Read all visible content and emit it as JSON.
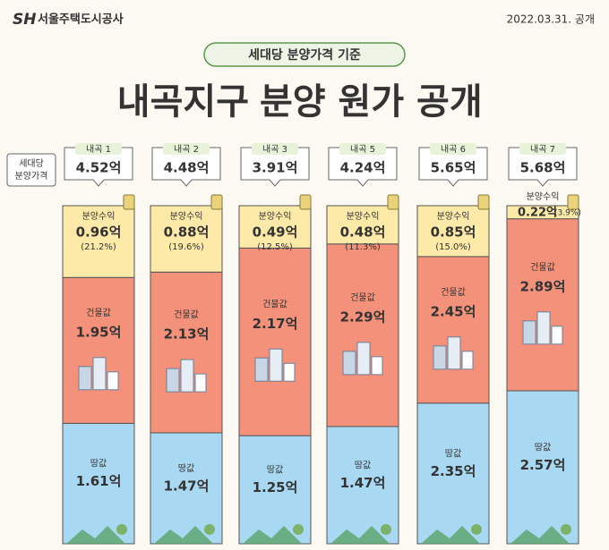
{
  "chart_data": {
    "type": "stacked_bar_100",
    "logo": "서울주택도시공사",
    "date": "2022.03.31. 공개",
    "subtitle": "세대당 분양가격 기준",
    "title_highlight": "내곡지구",
    "title_rest": "분양 원가 공개",
    "row_label": [
      "세대당",
      "분양가격"
    ],
    "categories": [
      "내곡 1",
      "내곡 2",
      "내곡 3",
      "내곡 5",
      "내곡 6",
      "내곡 7"
    ],
    "total_labels": [
      "4.52억",
      "4.48억",
      "3.91억",
      "4.24억",
      "5.65억",
      "5.68억"
    ],
    "series": [
      {
        "name": "땅값",
        "color": "#a9d9f2",
        "values": [
          1.61,
          1.47,
          1.25,
          1.47,
          2.35,
          2.57
        ],
        "value_labels": [
          "1.61억",
          "1.47억",
          "1.25억",
          "1.47억",
          "2.35억",
          "2.57억"
        ]
      },
      {
        "name": "건물값",
        "color": "#f4917a",
        "values": [
          1.95,
          2.13,
          2.17,
          2.29,
          2.45,
          2.89
        ],
        "value_labels": [
          "1.95억",
          "2.13억",
          "2.17억",
          "2.29억",
          "2.45억",
          "2.89억"
        ]
      },
      {
        "name": "분양수익",
        "color": "#fde9a8",
        "values": [
          0.96,
          0.88,
          0.49,
          0.48,
          0.85,
          0.22
        ],
        "value_labels": [
          "0.96억",
          "0.88억",
          "0.49억",
          "0.48억",
          "0.85억",
          "0.22억"
        ],
        "share_labels": [
          "(21.2%)",
          "(19.6%)",
          "(12.5%)",
          "(11.3%)",
          "(15.0%)",
          "(3.9%)"
        ]
      }
    ]
  }
}
